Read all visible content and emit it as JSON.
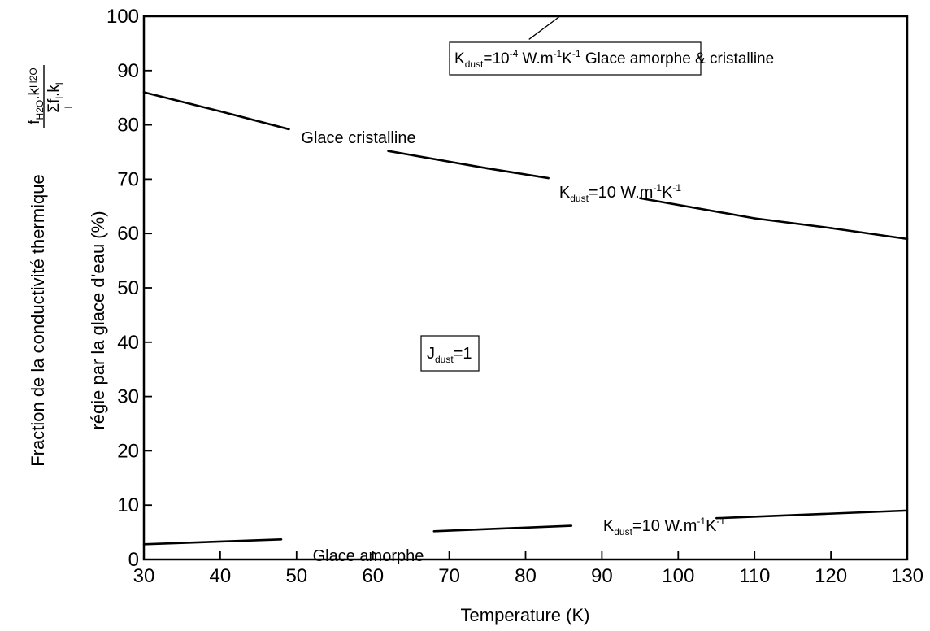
{
  "chart_data": {
    "type": "line",
    "xlabel": "Temperature (K)",
    "ylabel_line1": "Fraction de la conductivité thermique",
    "ylabel_line2": "régie par la glace d’eau (%)",
    "ylabel_fraction": {
      "num_f": "f",
      "num_f_sub": "H2O",
      "num_sep": ".k",
      "num_k_sub": "H2O",
      "den_sigma": "Σf",
      "den_f_sub": "l",
      "den_sep": ".k",
      "den_k_sub": "l",
      "den_under": "l"
    },
    "xlim": [
      30,
      130
    ],
    "ylim": [
      0,
      100
    ],
    "xticks": [
      30,
      40,
      50,
      60,
      70,
      80,
      90,
      100,
      110,
      120,
      130
    ],
    "yticks": [
      0,
      10,
      20,
      30,
      40,
      50,
      60,
      70,
      80,
      90,
      100
    ],
    "grid": false,
    "series": [
      {
        "key": "crystalline_k10",
        "x": [
          30,
          40,
          49,
          62,
          75,
          83,
          95,
          110,
          120,
          130
        ],
        "y": [
          86,
          82.5,
          79.2,
          75.2,
          72.0,
          70.2,
          66.5,
          62.8,
          61.0,
          59.0
        ],
        "gaps": [
          [
            49,
            62
          ],
          [
            83,
            95
          ]
        ]
      },
      {
        "key": "amorphous_k10",
        "x": [
          30,
          48,
          68,
          86,
          105,
          130
        ],
        "y": [
          2.8,
          3.7,
          5.2,
          6.2,
          7.6,
          9.0
        ],
        "gaps": [
          [
            48,
            68
          ],
          [
            86,
            105
          ]
        ]
      },
      {
        "key": "both_k1e-4",
        "x": [
          80.5,
          84.5
        ],
        "y": [
          95.8,
          100
        ]
      }
    ],
    "annotations": {
      "glace_cristalline": "Glace cristalline",
      "glace_amorphe": "Glace amorphe",
      "k_top": {
        "K": "K",
        "sub": "dust",
        "eq": "=10",
        "exp": "-4",
        "unit": " W.m",
        "unit_exp": "-1",
        "unit2": "K",
        "unit2_exp": "-1",
        "suffix": "  Glace amorphe & cristalline"
      },
      "k_mid": {
        "K": "K",
        "sub": "dust",
        "eq": "=10 W.m",
        "unit_exp": "-1",
        "unit2": "K",
        "unit2_exp": "-1"
      },
      "k_low": {
        "K": "K",
        "sub": "dust",
        "eq": "=10 W.m",
        "unit_exp": "-1",
        "unit2": "K",
        "unit2_exp": "-1"
      },
      "j_dust": {
        "J": "J",
        "sub": "dust",
        "eq": "=1"
      }
    }
  }
}
